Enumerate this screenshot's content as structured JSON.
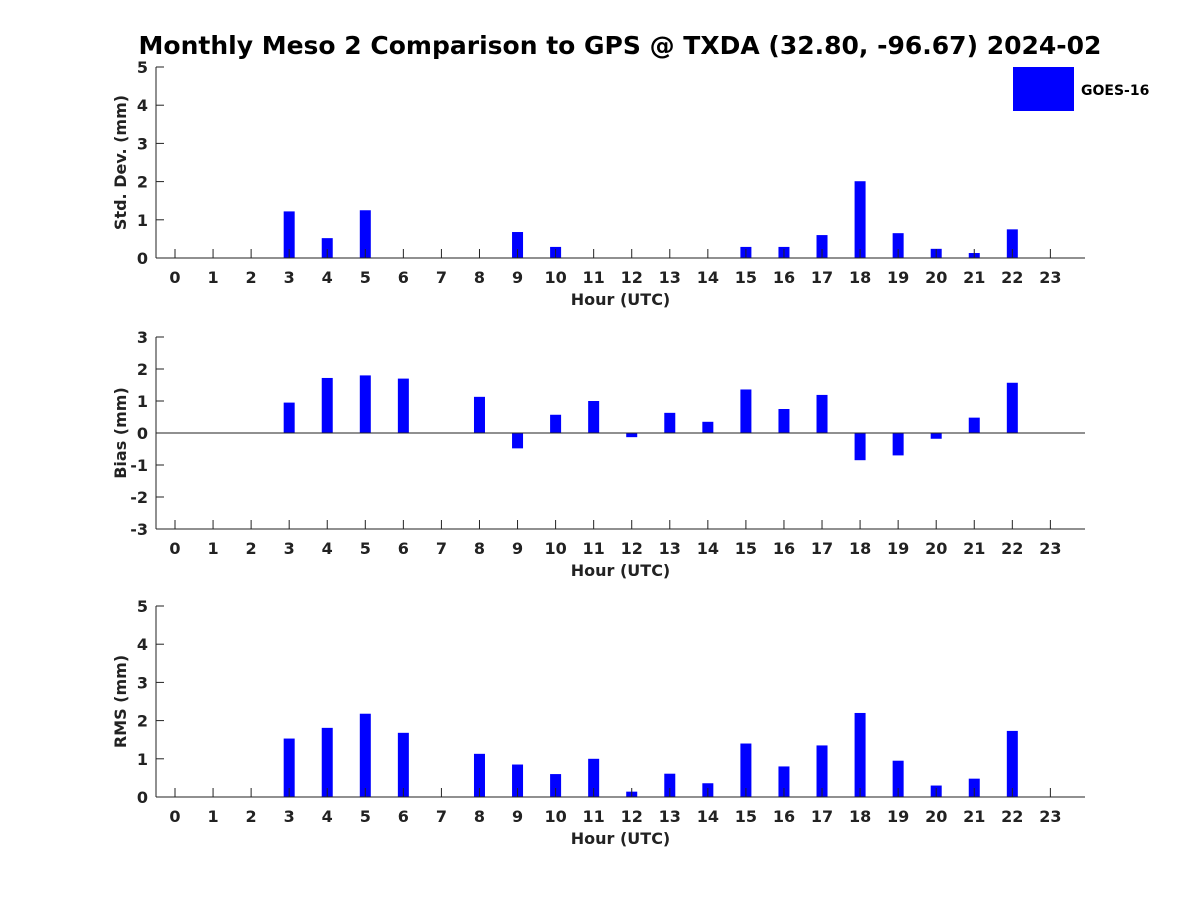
{
  "figure": {
    "title": "Monthly Meso 2 Comparison to GPS @ TXDA (32.80, -96.67) 2024-02",
    "legend": {
      "label": "GOES-16",
      "color": "#0000ff",
      "placement": "top-right"
    }
  },
  "chart_data": [
    {
      "type": "bar",
      "xlabel": "Hour (UTC)",
      "ylabel": "Std. Dev. (mm)",
      "ylim": [
        0,
        5
      ],
      "yticks": [
        0,
        1,
        2,
        3,
        4,
        5
      ],
      "categories": [
        "0",
        "1",
        "2",
        "3",
        "4",
        "5",
        "6",
        "7",
        "8",
        "9",
        "10",
        "11",
        "12",
        "13",
        "14",
        "15",
        "16",
        "17",
        "18",
        "19",
        "20",
        "21",
        "22",
        "23"
      ],
      "series": [
        {
          "name": "GOES-16",
          "color": "#0000ff",
          "values": [
            null,
            null,
            null,
            1.22,
            0.52,
            1.25,
            null,
            null,
            null,
            0.68,
            0.29,
            null,
            null,
            null,
            null,
            0.29,
            0.29,
            0.6,
            2.01,
            0.65,
            0.24,
            0.13,
            0.75,
            null
          ]
        }
      ],
      "zero_line": false
    },
    {
      "type": "bar",
      "xlabel": "Hour (UTC)",
      "ylabel": "Bias (mm)",
      "ylim": [
        -3,
        3
      ],
      "yticks": [
        -3,
        -2,
        -1,
        0,
        1,
        2,
        3
      ],
      "categories": [
        "0",
        "1",
        "2",
        "3",
        "4",
        "5",
        "6",
        "7",
        "8",
        "9",
        "10",
        "11",
        "12",
        "13",
        "14",
        "15",
        "16",
        "17",
        "18",
        "19",
        "20",
        "21",
        "22",
        "23"
      ],
      "series": [
        {
          "name": "GOES-16",
          "color": "#0000ff",
          "values": [
            null,
            null,
            null,
            0.95,
            1.72,
            1.8,
            1.7,
            null,
            1.13,
            -0.48,
            0.57,
            1.0,
            -0.13,
            0.63,
            0.35,
            1.36,
            0.75,
            1.19,
            -0.85,
            -0.7,
            -0.18,
            0.48,
            1.57,
            null
          ]
        }
      ],
      "zero_line": true
    },
    {
      "type": "bar",
      "xlabel": "Hour (UTC)",
      "ylabel": "RMS (mm)",
      "ylim": [
        0,
        5
      ],
      "yticks": [
        0,
        1,
        2,
        3,
        4,
        5
      ],
      "categories": [
        "0",
        "1",
        "2",
        "3",
        "4",
        "5",
        "6",
        "7",
        "8",
        "9",
        "10",
        "11",
        "12",
        "13",
        "14",
        "15",
        "16",
        "17",
        "18",
        "19",
        "20",
        "21",
        "22",
        "23"
      ],
      "series": [
        {
          "name": "GOES-16",
          "color": "#0000ff",
          "values": [
            null,
            null,
            null,
            1.53,
            1.81,
            2.18,
            1.68,
            null,
            1.13,
            0.85,
            0.6,
            1.0,
            0.14,
            0.61,
            0.36,
            1.4,
            0.8,
            1.35,
            2.2,
            0.95,
            0.3,
            0.48,
            1.73,
            null
          ]
        }
      ],
      "zero_line": false
    }
  ]
}
